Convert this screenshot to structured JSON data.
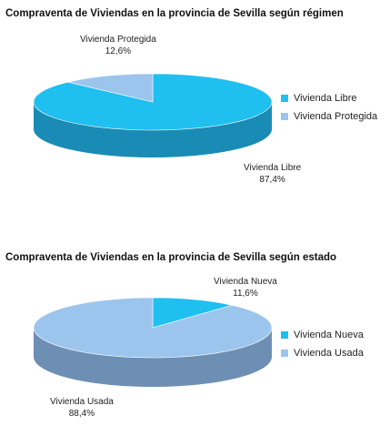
{
  "chart_data": [
    {
      "type": "pie",
      "title": "Compraventa de Viviendas en la provincia de Sevilla según régimen",
      "labels": [
        "Vivienda Libre",
        "Vivienda Protegida"
      ],
      "values": [
        87.4,
        12.6
      ],
      "data_labels": [
        {
          "name": "Vivienda Libre",
          "value": "87,4%"
        },
        {
          "name": "Vivienda Protegida",
          "value": "12,6%"
        }
      ],
      "colors": [
        "#1fbff0",
        "#9cc5ee"
      ],
      "side_colors": [
        "#1a8bb4",
        "#6e8fb4"
      ],
      "legend_placement": "right",
      "three_d": true
    },
    {
      "type": "pie",
      "title": "Compraventa de Viviendas en la provincia de Sevilla según estado",
      "labels": [
        "Vivienda Nueva",
        "Vivienda Usada"
      ],
      "values": [
        11.6,
        88.4
      ],
      "data_labels": [
        {
          "name": "Vivienda Nueva",
          "value": "11,6%"
        },
        {
          "name": "Vivienda Usada",
          "value": "88,4%"
        }
      ],
      "colors": [
        "#1fbff0",
        "#9cc5ee"
      ],
      "side_colors": [
        "#1a8bb4",
        "#6e8fb4"
      ],
      "legend_placement": "right",
      "three_d": true
    }
  ],
  "legend": [
    {
      "items": [
        "Vivienda Libre",
        "Vivienda Protegida"
      ]
    },
    {
      "items": [
        "Vivienda Nueva",
        "Vivienda Usada"
      ]
    }
  ]
}
